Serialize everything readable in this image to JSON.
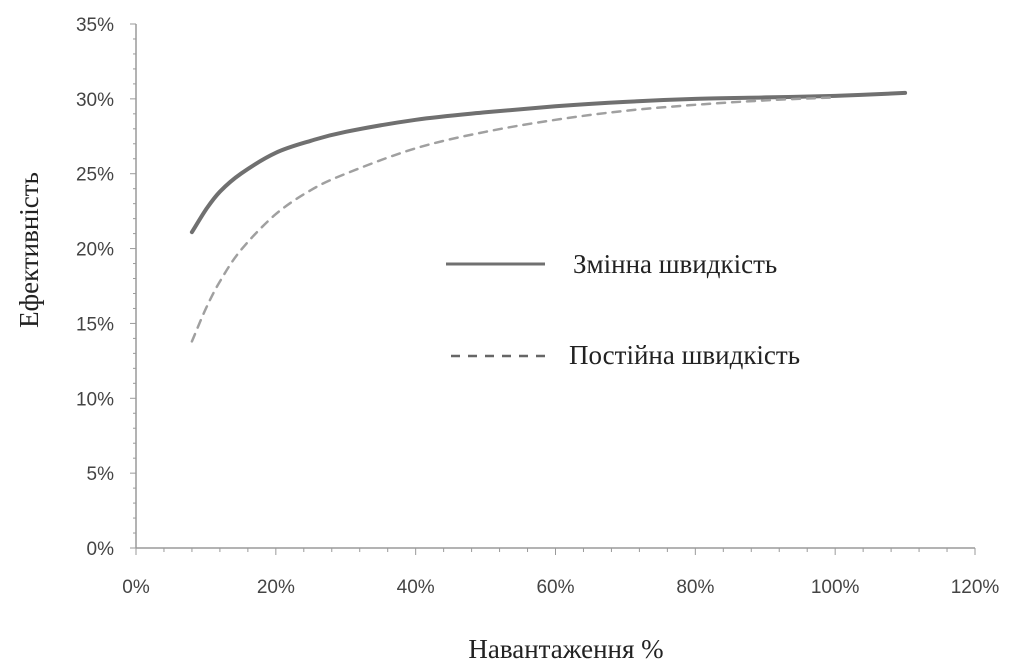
{
  "chart_data": {
    "type": "line",
    "title": "",
    "xlabel": "Навантаження %",
    "ylabel": "Ефективність",
    "xlim": [
      0,
      120
    ],
    "ylim": [
      0,
      35
    ],
    "x_ticks": [
      "0%",
      "20%",
      "40%",
      "60%",
      "80%",
      "100%",
      "120%"
    ],
    "y_ticks": [
      "0%",
      "5%",
      "10%",
      "15%",
      "20%",
      "25%",
      "30%",
      "35%"
    ],
    "grid": false,
    "legend_position": "center-right",
    "series": [
      {
        "name": "Змінна швидкість",
        "style": "solid",
        "color": "#707070",
        "x": [
          8,
          10,
          12,
          15,
          20,
          25,
          30,
          40,
          50,
          60,
          70,
          80,
          90,
          100,
          110
        ],
        "y": [
          21.1,
          22.6,
          23.8,
          25.0,
          26.4,
          27.2,
          27.8,
          28.6,
          29.1,
          29.5,
          29.8,
          30.0,
          30.1,
          30.2,
          30.4
        ]
      },
      {
        "name": "Постійна швидкість",
        "style": "dashed",
        "color": "#a0a0a0",
        "x": [
          8,
          10,
          12,
          15,
          20,
          25,
          30,
          40,
          50,
          60,
          70,
          80,
          90,
          100
        ],
        "y": [
          13.8,
          16.0,
          17.8,
          19.9,
          22.3,
          23.9,
          25.0,
          26.7,
          27.8,
          28.6,
          29.2,
          29.6,
          29.9,
          30.1
        ]
      }
    ]
  }
}
